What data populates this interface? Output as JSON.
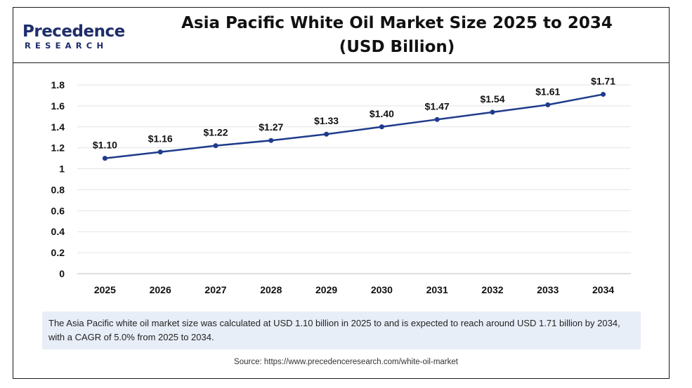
{
  "brand": {
    "name": "Precedence",
    "sub": "RESEARCH",
    "color": "#1f2d6b"
  },
  "title_line1": "Asia Pacific White Oil Market Size 2025 to 2034",
  "title_line2": "(USD Billion)",
  "note": "The Asia Pacific white oil market size was calculated at USD 1.10 billion in 2025 to and is expected to reach around USD 1.71 billion by 2034, with a CAGR of 5.0% from 2025 to 2034.",
  "source": "Source: https://www.precedenceresearch.com/white-oil-market",
  "chart_data": {
    "type": "line",
    "title": "Asia Pacific White Oil Market Size 2025 to 2034 (USD Billion)",
    "xlabel": "",
    "ylabel": "",
    "categories": [
      "2025",
      "2026",
      "2027",
      "2028",
      "2029",
      "2030",
      "2031",
      "2032",
      "2033",
      "2034"
    ],
    "series": [
      {
        "values": [
          1.1,
          1.16,
          1.22,
          1.27,
          1.33,
          1.4,
          1.47,
          1.54,
          1.61,
          1.71
        ],
        "labels": [
          "$1.10",
          "$1.16",
          "$1.22",
          "$1.27",
          "$1.33",
          "$1.40",
          "$1.47",
          "$1.54",
          "$1.61",
          "$1.71"
        ],
        "color": "#1f3b8c"
      }
    ],
    "ylim": [
      0,
      1.8
    ],
    "yticks": [
      0,
      0.2,
      0.4,
      0.6,
      0.8,
      1,
      1.2,
      1.4,
      1.6,
      1.8
    ],
    "ytick_labels": [
      "0",
      "0.2",
      "0.4",
      "0.6",
      "0.8",
      "1",
      "1.2",
      "1.4",
      "1.6",
      "1.8"
    ],
    "grid": true,
    "legend": "none"
  }
}
